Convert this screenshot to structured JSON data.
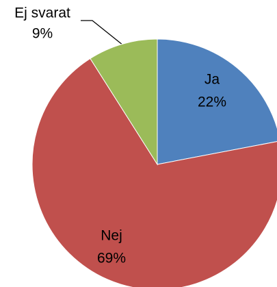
{
  "chart_data": {
    "type": "pie",
    "categories": [
      "Ja",
      "Nej",
      "Ej svarat"
    ],
    "values": [
      22,
      69,
      9
    ],
    "value_labels": [
      "22%",
      "69%",
      "9%"
    ],
    "colors": [
      "#4f81bd",
      "#c0504d",
      "#9bbb59"
    ]
  }
}
